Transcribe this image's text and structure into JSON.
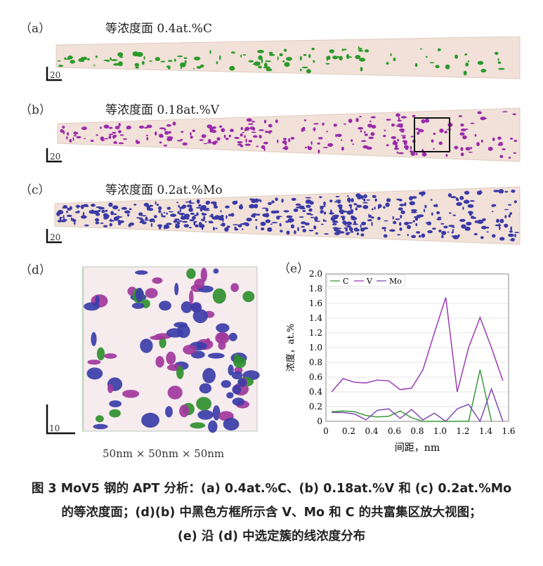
{
  "panel_a": {
    "label": "（a）",
    "title": "等浓度面 0.4at.%C",
    "scale": "20",
    "color": "#2a9a2a"
  },
  "panel_b": {
    "label": "（b）",
    "title": "等浓度面 0.18at.%V",
    "scale": "20",
    "color": "#9a2aaa"
  },
  "panel_c": {
    "label": "（c）",
    "title": "等浓度面 0.2at.%Mo",
    "scale": "20",
    "color": "#3a3aa6"
  },
  "panel_d": {
    "label": "（d）",
    "scale": "10",
    "dimensions": "50nm × 50nm × 50nm"
  },
  "panel_e": {
    "label": "（e）"
  },
  "caption": {
    "line1": "图 3  MoV5 钢的 APT 分析：(a) 0.4at.%C、(b) 0.18at.%V 和 (c) 0.2at.%Mo",
    "line2": "的等浓度面；(d)(b) 中黑色方框所示含 V、Mo 和 C 的共富集区放大视图；",
    "line3": "(e) 沿 (d) 中选定簇的线浓度分布"
  },
  "chart_data": {
    "type": "line",
    "title": "",
    "xlabel": "间距，nm",
    "ylabel": "浓度，at.%",
    "xlim": [
      0,
      1.6
    ],
    "ylim": [
      0,
      2.0
    ],
    "xticks": [
      "0",
      "0.2",
      "0.4",
      "0.6",
      "0.8",
      "1.0",
      "1.2",
      "1.4",
      "1.6"
    ],
    "yticks": [
      "0",
      "0.2",
      "0.4",
      "0.6",
      "0.8",
      "1.0",
      "1.2",
      "1.4",
      "1.6",
      "1.8",
      "2.0"
    ],
    "grid": true,
    "legend": "top-left",
    "series": [
      {
        "name": "C",
        "color": "#3a9a3a",
        "x": [
          0.05,
          0.15,
          0.25,
          0.35,
          0.45,
          0.55,
          0.65,
          0.75,
          0.85,
          0.95,
          1.05,
          1.15,
          1.25,
          1.35,
          1.45
        ],
        "y": [
          0.13,
          0.14,
          0.13,
          0.08,
          0.06,
          0.07,
          0.14,
          0.05,
          0.0,
          0.0,
          0.0,
          0.0,
          0.0,
          0.7,
          0.0
        ]
      },
      {
        "name": "V",
        "color": "#9b3bb3",
        "x": [
          0.05,
          0.15,
          0.25,
          0.35,
          0.45,
          0.55,
          0.65,
          0.75,
          0.85,
          0.95,
          1.05,
          1.15,
          1.25,
          1.35,
          1.45,
          1.55
        ],
        "y": [
          0.4,
          0.58,
          0.53,
          0.52,
          0.56,
          0.55,
          0.43,
          0.45,
          0.7,
          1.2,
          1.68,
          0.4,
          1.0,
          1.41,
          1.0,
          0.55
        ]
      },
      {
        "name": "Mo",
        "color": "#7d4bb3",
        "x": [
          0.05,
          0.15,
          0.25,
          0.35,
          0.45,
          0.55,
          0.65,
          0.75,
          0.85,
          0.95,
          1.05,
          1.15,
          1.25,
          1.35,
          1.45,
          1.55
        ],
        "y": [
          0.12,
          0.12,
          0.1,
          0.02,
          0.15,
          0.17,
          0.04,
          0.16,
          0.02,
          0.11,
          0.0,
          0.17,
          0.23,
          0.0,
          0.44,
          0.0
        ]
      }
    ]
  }
}
